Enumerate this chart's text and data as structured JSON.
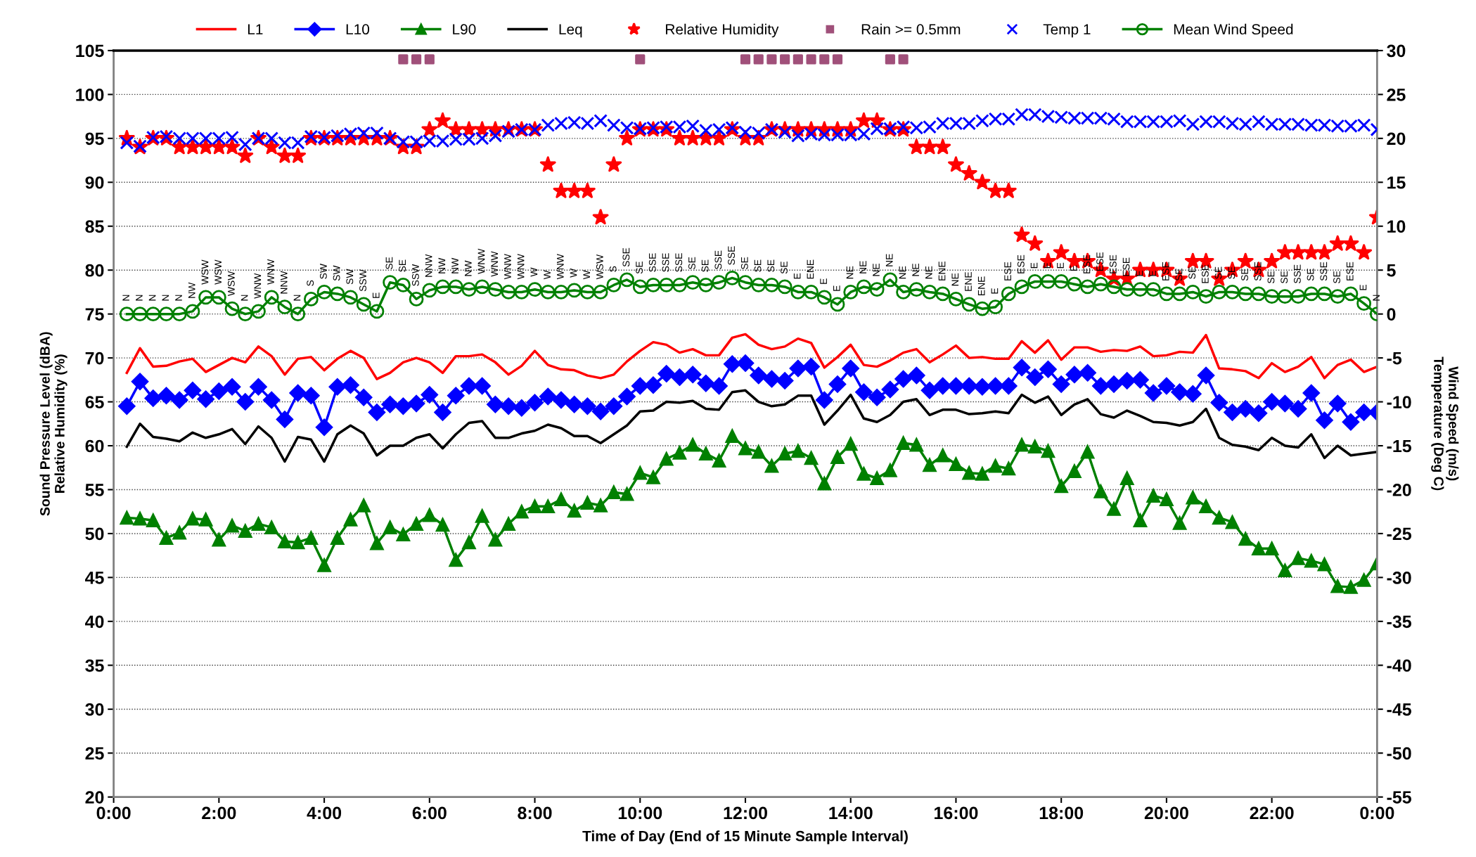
{
  "chart_data": {
    "type": "line",
    "xlabel": "Time of Day (End of 15 Minute Sample Interval)",
    "ylabel": "Sound Pressure Level (dBA)\nRelative Humidity (%)",
    "y2label": "Wind Speed (m/s)\nTemperature (Deg C)",
    "x": [
      0.25,
      0.5,
      0.75,
      1,
      1.25,
      1.5,
      1.75,
      2,
      2.25,
      2.5,
      2.75,
      3,
      3.25,
      3.5,
      3.75,
      4,
      4.25,
      4.5,
      4.75,
      5,
      5.25,
      5.5,
      5.75,
      6,
      6.25,
      6.5,
      6.75,
      7,
      7.25,
      7.5,
      7.75,
      8,
      8.25,
      8.5,
      8.75,
      9,
      9.25,
      9.5,
      9.75,
      10,
      10.25,
      10.5,
      10.75,
      11,
      11.25,
      11.5,
      11.75,
      12,
      12.25,
      12.5,
      12.75,
      13,
      13.25,
      13.5,
      13.75,
      14,
      14.25,
      14.5,
      14.75,
      15,
      15.25,
      15.5,
      15.75,
      16,
      16.25,
      16.5,
      16.75,
      17,
      17.25,
      17.5,
      17.75,
      18,
      18.25,
      18.5,
      18.75,
      19,
      19.25,
      19.5,
      19.75,
      20,
      20.25,
      20.5,
      20.75,
      21,
      21.25,
      21.5,
      21.75,
      22,
      22.25,
      22.5,
      22.75,
      23,
      23.25,
      23.5,
      23.75,
      24
    ],
    "xlim": [
      0,
      24
    ],
    "xticks": [
      {
        "value": 0,
        "label": "0:00"
      },
      {
        "value": 2,
        "label": "2:00"
      },
      {
        "value": 4,
        "label": "4:00"
      },
      {
        "value": 6,
        "label": "6:00"
      },
      {
        "value": 8,
        "label": "8:00"
      },
      {
        "value": 10,
        "label": "10:00"
      },
      {
        "value": 12,
        "label": "12:00"
      },
      {
        "value": 14,
        "label": "14:00"
      },
      {
        "value": 16,
        "label": "16:00"
      },
      {
        "value": 18,
        "label": "18:00"
      },
      {
        "value": 20,
        "label": "20:00"
      },
      {
        "value": 22,
        "label": "22:00"
      },
      {
        "value": 24,
        "label": "0:00"
      }
    ],
    "ylim": [
      20,
      105
    ],
    "yticks": [
      20,
      25,
      30,
      35,
      40,
      45,
      50,
      55,
      60,
      65,
      70,
      75,
      80,
      85,
      90,
      95,
      100,
      105
    ],
    "y2lim": [
      -55,
      30
    ],
    "y2ticks": [
      -55,
      -50,
      -45,
      -40,
      -35,
      -30,
      -25,
      -20,
      -15,
      -10,
      -5,
      0,
      5,
      10,
      15,
      20,
      25,
      30
    ],
    "grid": "y",
    "legend": "top",
    "series": [
      {
        "name": "L1",
        "color": "#ff0000",
        "marker": "none",
        "values": [
          68.3,
          71.1,
          69.0,
          69.1,
          69.6,
          69.9,
          68.4,
          69.2,
          70.0,
          69.5,
          71.3,
          70.2,
          68.1,
          69.9,
          70.1,
          68.6,
          69.9,
          70.8,
          70.0,
          67.6,
          68.3,
          69.5,
          70.0,
          69.5,
          68.3,
          70.2,
          70.2,
          70.4,
          69.5,
          68.1,
          69.1,
          70.8,
          69.2,
          68.7,
          68.6,
          68.0,
          67.7,
          68.1,
          69.6,
          70.8,
          71.8,
          71.5,
          70.6,
          71.0,
          70.3,
          70.3,
          72.3,
          72.7,
          71.5,
          71.0,
          71.3,
          72.2,
          71.7,
          68.9,
          70.1,
          71.5,
          69.2,
          69.0,
          69.7,
          70.6,
          71.0,
          69.5,
          70.4,
          71.4,
          70.0,
          70.1,
          69.9,
          69.9,
          71.9,
          70.6,
          72.0,
          69.8,
          71.2,
          71.2,
          70.7,
          70.9,
          70.8,
          71.3,
          70.2,
          70.3,
          70.7,
          70.6,
          72.6,
          68.8,
          68.7,
          68.5,
          67.7,
          69.4,
          68.4,
          69.0,
          70.1,
          67.7,
          69.2,
          69.8,
          68.4,
          69.0
        ]
      },
      {
        "name": "L10",
        "color": "#0000ff",
        "marker": "diamond",
        "values": [
          64.5,
          67.3,
          65.4,
          65.7,
          65.2,
          66.3,
          65.3,
          66.2,
          66.7,
          65.0,
          66.7,
          65.2,
          63.0,
          66.0,
          65.7,
          62.1,
          66.7,
          66.9,
          65.5,
          63.8,
          64.7,
          64.5,
          64.8,
          65.8,
          63.8,
          65.7,
          66.8,
          66.8,
          64.7,
          64.5,
          64.3,
          64.9,
          65.6,
          65.2,
          64.7,
          64.5,
          63.9,
          64.5,
          65.6,
          66.8,
          66.9,
          68.2,
          67.8,
          68.1,
          67.1,
          66.8,
          69.3,
          69.4,
          68.0,
          67.6,
          67.4,
          68.8,
          69.0,
          65.2,
          67.0,
          68.8,
          66.1,
          65.5,
          66.4,
          67.6,
          68.0,
          66.3,
          66.8,
          66.8,
          66.8,
          66.7,
          66.8,
          66.8,
          68.9,
          67.8,
          68.7,
          67.0,
          68.1,
          68.3,
          66.8,
          67.0,
          67.4,
          67.5,
          66.0,
          66.8,
          66.1,
          65.9,
          68.0,
          64.9,
          63.8,
          64.2,
          63.7,
          65.0,
          64.8,
          64.2,
          66.0,
          62.9,
          64.8,
          62.7,
          63.8,
          63.8
        ]
      },
      {
        "name": "L90",
        "color": "#008000",
        "marker": "triangle",
        "values": [
          51.8,
          51.7,
          51.5,
          49.5,
          50.1,
          51.7,
          51.6,
          49.3,
          50.9,
          50.3,
          51.1,
          50.7,
          49.1,
          49.0,
          49.5,
          46.4,
          49.5,
          51.6,
          53.2,
          48.9,
          50.7,
          49.9,
          51.1,
          52.1,
          51.0,
          47.0,
          49.0,
          52.0,
          49.3,
          51.1,
          52.5,
          53.1,
          53.1,
          53.9,
          52.6,
          53.5,
          53.2,
          54.7,
          54.5,
          56.9,
          56.4,
          58.5,
          59.2,
          60.1,
          59.1,
          58.3,
          61.1,
          59.7,
          59.3,
          57.7,
          59.1,
          59.4,
          58.6,
          55.7,
          58.7,
          60.2,
          56.8,
          56.3,
          57.2,
          60.3,
          60.1,
          57.8,
          58.9,
          57.9,
          56.9,
          56.8,
          57.7,
          57.4,
          60.1,
          59.9,
          59.4,
          55.4,
          57.1,
          59.3,
          54.8,
          52.8,
          56.3,
          51.5,
          54.3,
          53.9,
          51.2,
          54.1,
          53.1,
          51.8,
          51.3,
          49.4,
          48.3,
          48.3,
          45.8,
          47.2,
          46.9,
          46.5,
          44.0,
          43.9,
          44.7,
          46.6
        ]
      },
      {
        "name": "Leq",
        "color": "#000000",
        "marker": "none",
        "values": [
          59.9,
          62.5,
          61.0,
          60.8,
          60.5,
          61.5,
          60.9,
          61.3,
          61.9,
          60.2,
          62.2,
          60.9,
          58.2,
          61.0,
          60.7,
          58.2,
          61.3,
          62.3,
          61.4,
          58.9,
          60.0,
          60.0,
          60.9,
          61.3,
          59.7,
          61.3,
          62.6,
          62.8,
          60.9,
          60.9,
          61.4,
          61.7,
          62.4,
          62.0,
          61.1,
          61.1,
          60.3,
          61.3,
          62.3,
          63.9,
          64.0,
          65.0,
          64.9,
          65.1,
          64.2,
          64.1,
          66.1,
          66.3,
          65.0,
          64.5,
          64.7,
          65.7,
          65.7,
          62.4,
          64.0,
          65.8,
          63.1,
          62.7,
          63.5,
          65.0,
          65.3,
          63.5,
          64.1,
          64.1,
          63.6,
          63.7,
          63.9,
          63.7,
          65.8,
          64.9,
          65.6,
          63.5,
          64.7,
          65.3,
          63.6,
          63.2,
          64.0,
          63.4,
          62.7,
          62.6,
          62.3,
          62.7,
          64.2,
          60.9,
          60.1,
          59.9,
          59.5,
          60.9,
          60.0,
          59.8,
          61.3,
          58.6,
          60.0,
          58.9,
          59.1,
          59.3
        ]
      },
      {
        "name": "Relative Humidity",
        "type": "scatter",
        "color": "#ff0000",
        "marker": "star",
        "values": [
          95,
          94,
          95,
          95,
          94,
          94,
          94,
          94,
          94,
          93,
          95,
          94,
          93,
          93,
          95,
          95,
          95,
          95,
          95,
          95,
          95,
          94,
          94,
          96,
          97,
          96,
          96,
          96,
          96,
          96,
          96,
          96,
          92,
          89,
          89,
          89,
          86,
          92,
          95,
          96,
          96,
          96,
          95,
          95,
          95,
          95,
          96,
          95,
          95,
          96,
          96,
          96,
          96,
          96,
          96,
          96,
          97,
          97,
          96,
          96,
          94,
          94,
          94,
          92,
          91,
          90,
          89,
          89,
          84,
          83,
          81,
          82,
          81,
          81,
          80,
          79,
          79,
          80,
          80,
          80,
          79,
          81,
          81,
          79,
          80,
          81,
          80,
          81,
          82,
          82,
          82,
          82,
          83,
          83,
          82,
          86
        ]
      },
      {
        "name": "Rain >= 0.5mm",
        "type": "scatter",
        "color": "#a0507a",
        "marker": "square",
        "values": [
          null,
          null,
          null,
          null,
          null,
          null,
          null,
          null,
          null,
          null,
          null,
          null,
          null,
          null,
          null,
          null,
          null,
          null,
          null,
          null,
          null,
          104,
          104,
          104,
          null,
          null,
          null,
          null,
          null,
          null,
          null,
          null,
          null,
          null,
          null,
          null,
          null,
          null,
          null,
          104,
          null,
          null,
          null,
          null,
          null,
          null,
          null,
          104,
          104,
          104,
          104,
          104,
          104,
          104,
          104,
          null,
          null,
          null,
          104,
          104,
          null,
          null,
          null,
          null,
          null,
          null,
          null,
          null,
          null,
          null,
          null,
          null,
          null,
          null,
          null,
          null,
          null,
          null,
          null,
          null,
          null,
          null,
          null,
          null,
          null,
          null,
          null,
          null,
          null,
          null,
          null,
          null,
          null,
          null,
          null,
          null
        ]
      },
      {
        "name": "Temp 1",
        "type": "scatter",
        "axis": "y2",
        "color": "#0000ff",
        "marker": "cross",
        "values": [
          19.5,
          19.1,
          20.1,
          20.2,
          20.0,
          20.0,
          20.0,
          20.0,
          20.1,
          19.3,
          20.0,
          20.0,
          19.5,
          19.5,
          20.2,
          20.1,
          20.3,
          20.5,
          20.6,
          20.6,
          20.0,
          19.6,
          19.6,
          19.7,
          19.7,
          19.9,
          19.9,
          20.0,
          20.3,
          20.8,
          21.0,
          21.0,
          21.5,
          21.7,
          21.8,
          21.7,
          22.0,
          21.5,
          21.2,
          21.1,
          21.2,
          21.3,
          21.3,
          21.4,
          20.9,
          21.0,
          21.2,
          20.7,
          20.6,
          21.0,
          20.7,
          20.3,
          20.5,
          20.4,
          20.4,
          20.4,
          20.5,
          21.1,
          21.1,
          21.3,
          21.2,
          21.3,
          21.7,
          21.7,
          21.7,
          22.0,
          22.2,
          22.2,
          22.7,
          22.7,
          22.5,
          22.4,
          22.3,
          22.3,
          22.3,
          22.2,
          21.9,
          21.9,
          21.9,
          21.9,
          22.0,
          21.6,
          21.9,
          21.9,
          21.7,
          21.6,
          21.9,
          21.6,
          21.6,
          21.6,
          21.5,
          21.5,
          21.4,
          21.4,
          21.5,
          21.0
        ]
      },
      {
        "name": "Mean Wind Speed",
        "axis": "y2",
        "color": "#008000",
        "marker": "circle",
        "values": [
          0,
          0,
          0,
          0,
          0,
          0.3,
          1.9,
          1.9,
          0.6,
          0,
          0.3,
          1.9,
          0.8,
          0,
          1.7,
          2.5,
          2.3,
          1.9,
          1.1,
          0.3,
          3.6,
          3.3,
          1.7,
          2.7,
          3.1,
          3.1,
          2.8,
          3.1,
          2.8,
          2.5,
          2.5,
          2.8,
          2.5,
          2.5,
          2.7,
          2.5,
          2.5,
          3.3,
          3.9,
          3.1,
          3.3,
          3.3,
          3.3,
          3.6,
          3.3,
          3.6,
          4.1,
          3.6,
          3.3,
          3.3,
          3.1,
          2.5,
          2.5,
          1.9,
          1.1,
          2.5,
          3.1,
          2.8,
          3.9,
          2.5,
          2.8,
          2.5,
          2.3,
          1.7,
          1.1,
          0.6,
          0.8,
          2.3,
          3.1,
          3.7,
          3.7,
          3.7,
          3.4,
          3.1,
          3.4,
          3.1,
          2.8,
          2.8,
          2.8,
          2.3,
          2.3,
          2.5,
          2.0,
          2.5,
          2.5,
          2.3,
          2.3,
          2.0,
          2.0,
          2.0,
          2.3,
          2.3,
          2.0,
          2.3,
          1.2,
          0
        ],
        "value_labels": [
          "N",
          "N",
          "N",
          "N",
          "N",
          "NW",
          "WSW",
          "WSW",
          "WSW",
          "N",
          "WNW",
          "WNW",
          "NNW",
          "N",
          "S",
          "SW",
          "SW",
          "SW",
          "SSW",
          "E",
          "SE",
          "SE",
          "SSW",
          "NNW",
          "NW",
          "NW",
          "NW",
          "WNW",
          "WNW",
          "WNW",
          "WNW",
          "W",
          "W",
          "WNW",
          "W",
          "W",
          "WSW",
          "S",
          "SSE",
          "SE",
          "SSE",
          "SSE",
          "SSE",
          "SE",
          "SE",
          "SSE",
          "SSE",
          "SE",
          "SE",
          "SE",
          "SE",
          "E",
          "ENE",
          "E",
          "E",
          "NE",
          "NE",
          "NE",
          "NE",
          "NE",
          "NE",
          "NE",
          "ENE",
          "NE",
          "ENE",
          "ENE",
          "E",
          "ESE",
          "ESE",
          "E",
          "E",
          "E",
          "E",
          "ESE",
          "ESE",
          "ESE",
          "ESE",
          "E",
          "E",
          "ESE",
          "SE",
          "SE",
          "ESE",
          "SE",
          "SE",
          "SE",
          "SSE",
          "SE",
          "SE",
          "SSE",
          "SE",
          "SSE",
          "SE",
          "ESE",
          "E",
          "N"
        ]
      }
    ]
  }
}
